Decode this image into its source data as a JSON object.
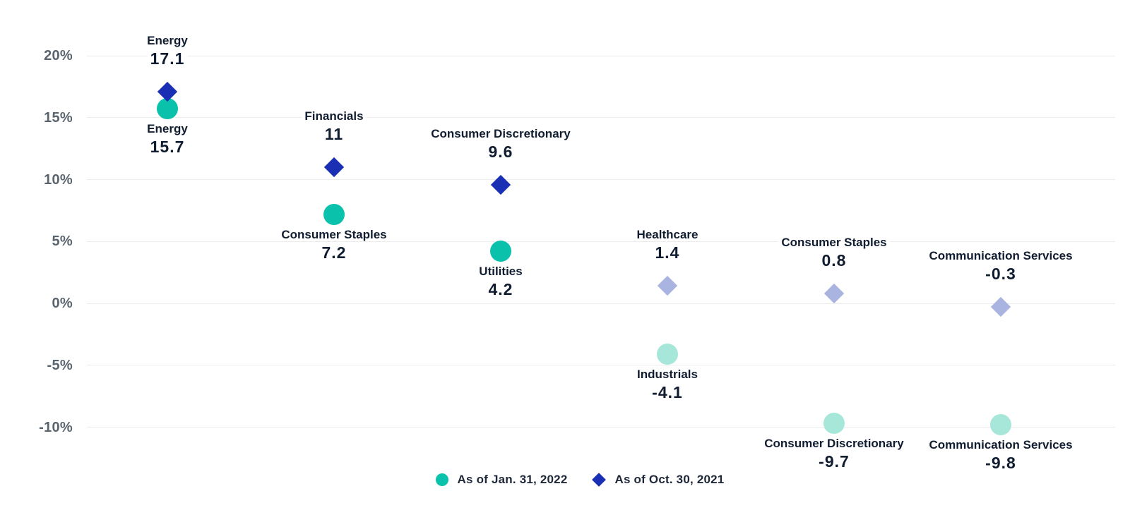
{
  "chart_data": {
    "type": "scatter",
    "title": "",
    "xlabel": "",
    "ylabel": "",
    "y_axis": {
      "ticks": [
        {
          "label": "20%",
          "value": 20
        },
        {
          "label": "15%",
          "value": 15
        },
        {
          "label": "10%",
          "value": 10
        },
        {
          "label": "5%",
          "value": 5
        },
        {
          "label": "0%",
          "value": 0
        },
        {
          "label": "-5%",
          "value": -5
        },
        {
          "label": "-10%",
          "value": -10
        }
      ],
      "range": [
        -13.5,
        22.5
      ],
      "grid": true
    },
    "legend": {
      "position": "bottom-center",
      "items": [
        {
          "label": "As of Jan. 31, 2022",
          "marker": "circle",
          "color": "#0ac2ac"
        },
        {
          "label": "As of Oct. 30, 2021",
          "marker": "diamond",
          "color": "#1a2fb4"
        }
      ]
    },
    "series": [
      {
        "name": "As of Jan. 31, 2022",
        "marker": "circle",
        "color": "#0ac2ac",
        "muted_color": "#a7e7d9",
        "label_position": "below",
        "points": [
          {
            "sector": "Energy",
            "value": 15.7,
            "display": "15.7",
            "col": 0,
            "muted": false
          },
          {
            "sector": "Consumer Staples",
            "value": 7.2,
            "display": "7.2",
            "col": 1,
            "muted": false
          },
          {
            "sector": "Utilities",
            "value": 4.2,
            "display": "4.2",
            "col": 2,
            "muted": false
          },
          {
            "sector": "Industrials",
            "value": -4.1,
            "display": "-4.1",
            "col": 3,
            "muted": true
          },
          {
            "sector": "Consumer Discretionary",
            "value": -9.7,
            "display": "-9.7",
            "col": 4,
            "muted": true
          },
          {
            "sector": "Communication Services",
            "value": -9.8,
            "display": "-9.8",
            "col": 5,
            "muted": true
          }
        ]
      },
      {
        "name": "As of Oct. 30, 2021",
        "marker": "diamond",
        "color": "#1a2fb4",
        "muted_color": "#aab4e0",
        "label_position": "above",
        "points": [
          {
            "sector": "Energy",
            "value": 17.1,
            "display": "17.1",
            "col": 0,
            "muted": false
          },
          {
            "sector": "Financials",
            "value": 11,
            "display": "11",
            "col": 1,
            "muted": false
          },
          {
            "sector": "Consumer Discretionary",
            "value": 9.6,
            "display": "9.6",
            "col": 2,
            "muted": false
          },
          {
            "sector": "Healthcare",
            "value": 1.4,
            "display": "1.4",
            "col": 3,
            "muted": true
          },
          {
            "sector": "Consumer Staples",
            "value": 0.8,
            "display": "0.8",
            "col": 4,
            "muted": true
          },
          {
            "sector": "Communication Services",
            "value": -0.3,
            "display": "-0.3",
            "col": 5,
            "muted": true
          }
        ]
      }
    ],
    "colors": {
      "background": "#ffffff",
      "grid": "#ececec",
      "axis_text": "#5a646e",
      "label_text": "#101c30",
      "legend_text": "#1e2838"
    }
  }
}
